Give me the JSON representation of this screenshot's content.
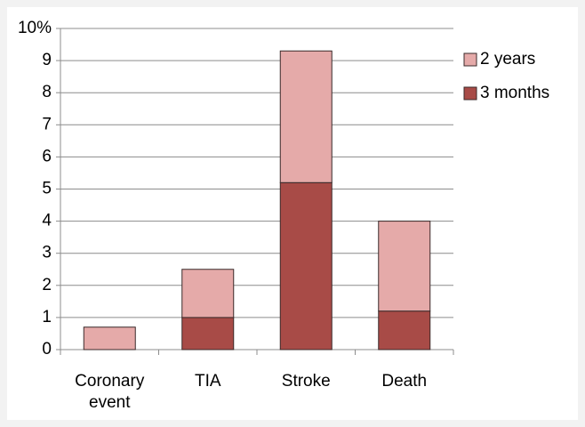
{
  "chart_data": {
    "type": "stacked-bar",
    "categories": [
      "Coronary event",
      "TIA",
      "Stroke",
      "Death"
    ],
    "series": [
      {
        "name": "3 months",
        "color": "#a84b47",
        "values": [
          0,
          1,
          5.2,
          1.2
        ]
      },
      {
        "name": "2 years",
        "color": "#e5aaa9",
        "values": [
          0.7,
          1.5,
          4.1,
          2.8
        ]
      }
    ],
    "ylim": [
      0,
      10
    ],
    "yticks": [
      0,
      1,
      2,
      3,
      4,
      5,
      6,
      7,
      8,
      9,
      {
        "value": 10,
        "label": "10%"
      }
    ],
    "grid": true,
    "legend": "right"
  }
}
